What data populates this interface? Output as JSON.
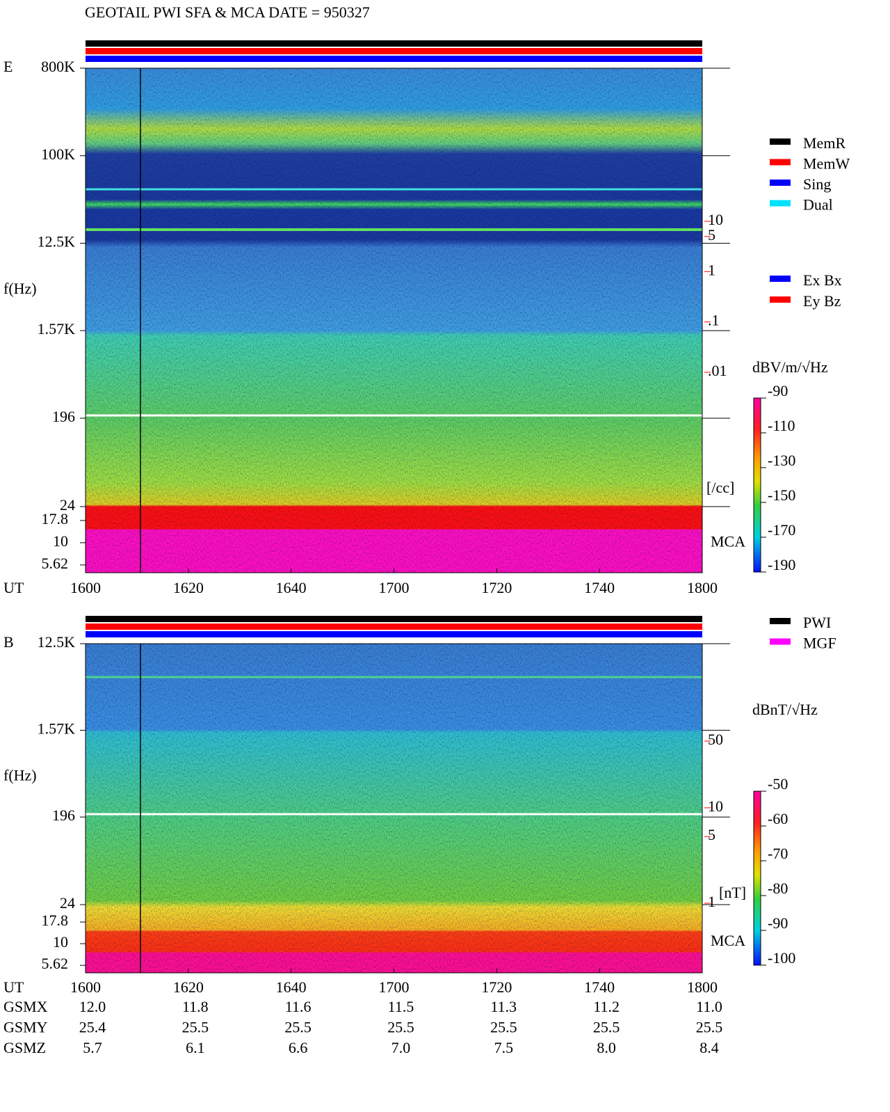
{
  "title": "GEOTAIL   PWI SFA & MCA   DATE = 950327",
  "chart_data": [
    {
      "type": "spectrogram",
      "panel_label": "E",
      "ylabel": "f(Hz)",
      "xlabel": "UT",
      "log_y": true,
      "ylim": [
        24,
        800000
      ],
      "yticks": [
        {
          "value": 800000,
          "label": "800K"
        },
        {
          "value": 100000,
          "label": "100K"
        },
        {
          "value": 12500,
          "label": "12.5K"
        },
        {
          "value": 1570,
          "label": "1.57K"
        },
        196,
        24
      ],
      "mca_label": "MCA",
      "mca_ylim": [
        4.6,
        25.5
      ],
      "mca_yticks": [
        17.8,
        10,
        5.62
      ],
      "xticks": [
        "1600",
        "1620",
        "1640",
        "1700",
        "1720",
        "1740",
        "1800"
      ],
      "aux_color": "#ff0000",
      "aux_ylim": [
        0.01,
        10
      ],
      "aux_yticks": [
        10,
        5,
        1,
        {
          "value": 0.1,
          "label": ".1"
        },
        {
          "value": 0.01,
          "label": ".01"
        }
      ],
      "aux_unit": "[/cc]",
      "colorbar": {
        "label": "dBV/m/√Hz",
        "lim": [
          -190,
          -90
        ],
        "ticks": [
          -90,
          -110,
          -130,
          -150,
          -170,
          -190
        ]
      },
      "status_legend": [
        {
          "name": "MemR",
          "color": "#000000"
        },
        {
          "name": "MemW",
          "color": "#ff0000"
        },
        {
          "name": "Sing",
          "color": "#0000ff"
        },
        {
          "name": "Dual",
          "color": "#00e0ff"
        }
      ],
      "component_legend": [
        {
          "name": "Ex Bx",
          "color": "#0000ff"
        },
        {
          "name": "Ey Bz",
          "color": "#ff0000"
        }
      ]
    },
    {
      "type": "spectrogram",
      "panel_label": "B",
      "ylabel": "f(Hz)",
      "xlabel": "UT",
      "log_y": true,
      "ylim": [
        24,
        12500
      ],
      "yticks": [
        {
          "value": 12500,
          "label": "12.5K"
        },
        {
          "value": 1570,
          "label": "1.57K"
        },
        196,
        24
      ],
      "mca_label": "MCA",
      "mca_ylim": [
        4.6,
        28.3
      ],
      "mca_yticks": [
        17.8,
        10,
        5.62
      ],
      "xticks": [
        "1600",
        "1620",
        "1640",
        "1700",
        "1720",
        "1740",
        "1800"
      ],
      "aux_color": "#ff0000",
      "aux_ylim": [
        1,
        50
      ],
      "aux_yticks": [
        50,
        10,
        5,
        1
      ],
      "aux_unit": "[nT]",
      "colorbar": {
        "label": "dBnT/√Hz",
        "lim": [
          -100,
          -50
        ],
        "ticks": [
          -50,
          -60,
          -70,
          -80,
          -90,
          -100
        ]
      },
      "status_legend": [
        {
          "name": "PWI",
          "color": "#000000"
        },
        {
          "name": "MGF",
          "color": "#ff00ff"
        }
      ]
    }
  ],
  "orbit": [
    {
      "label": "GSMX",
      "values": [
        "12.0",
        "11.8",
        "11.6",
        "11.5",
        "11.3",
        "11.2",
        "11.0"
      ]
    },
    {
      "label": "GSMY",
      "values": [
        "25.4",
        "25.5",
        "25.5",
        "25.5",
        "25.5",
        "25.5",
        "25.5"
      ]
    },
    {
      "label": "GSMZ",
      "values": [
        "5.7",
        "6.1",
        "6.6",
        "7.0",
        "7.5",
        "8.0",
        "8.4"
      ]
    }
  ]
}
